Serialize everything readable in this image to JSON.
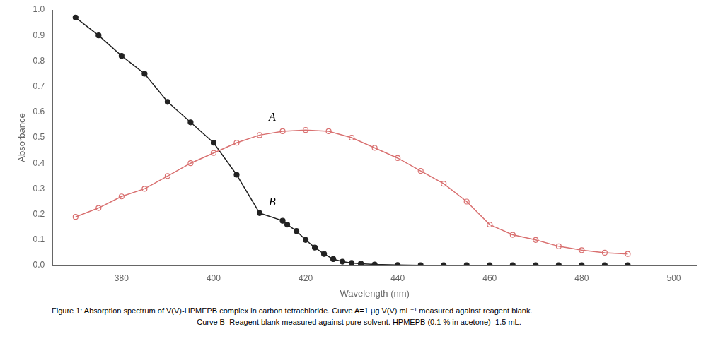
{
  "chart_data": {
    "type": "line",
    "xlabel": "Wavelength (nm)",
    "ylabel": "Absorbance",
    "series": [
      {
        "color": "#d97070",
        "marker": "open_circle",
        "x": [
          370,
          375,
          380,
          385,
          390,
          395,
          400,
          405,
          410,
          415,
          420,
          425,
          430,
          435,
          440,
          445,
          450,
          455,
          460,
          465,
          470,
          475,
          480,
          485,
          490
        ],
        "values": [
          0.19,
          0.225,
          0.27,
          0.3,
          0.35,
          0.4,
          0.44,
          0.48,
          0.51,
          0.525,
          0.53,
          0.525,
          0.5,
          0.46,
          0.42,
          0.37,
          0.32,
          0.25,
          0.16,
          0.12,
          0.1,
          0.075,
          0.06,
          0.05,
          0.045
        ]
      },
      {
        "color": "#222222",
        "marker": "circle",
        "x": [
          370,
          375,
          380,
          385,
          390,
          395,
          400,
          405,
          410,
          415,
          416,
          418,
          420,
          422,
          424,
          426,
          428,
          430,
          432,
          435,
          440,
          445,
          450,
          455,
          460,
          465,
          470,
          475,
          480,
          485,
          490
        ],
        "values": [
          0.97,
          0.9,
          0.82,
          0.75,
          0.64,
          0.56,
          0.48,
          0.355,
          0.205,
          0.175,
          0.16,
          0.135,
          0.1,
          0.07,
          0.045,
          0.025,
          0.015,
          0.01,
          0.007,
          0.004,
          0.002,
          0.001,
          0.001,
          0.001,
          0.001,
          0.001,
          0.001,
          0.001,
          0.001,
          0.001,
          0.001
        ]
      }
    ],
    "xlim": [
      365,
      505
    ],
    "ylim": [
      0.0,
      1.0
    ],
    "xticks": [
      380,
      400,
      420,
      440,
      460,
      480,
      500
    ],
    "yticks": [
      {
        "value": 0.0,
        "label": "0.0"
      },
      {
        "value": 0.1,
        "label": "0.1"
      },
      {
        "value": 0.2,
        "label": "0.2"
      },
      {
        "value": 0.3,
        "label": "0.3"
      },
      {
        "value": 0.4,
        "label": "0.4"
      },
      {
        "value": 0.5,
        "label": "0.5"
      },
      {
        "value": 0.6,
        "label": "0.6"
      },
      {
        "value": 0.7,
        "label": "0.7"
      },
      {
        "value": 0.8,
        "label": "0.8"
      },
      {
        "value": 0.9,
        "label": "0.9"
      },
      {
        "value": 1.0,
        "label": "1.0"
      }
    ],
    "grid": false,
    "annotations": [
      {
        "text": "A",
        "x": 412,
        "y": 0.565
      },
      {
        "text": "B",
        "x": 412,
        "y": 0.235
      }
    ],
    "caption": [
      "Figure 1: Absorption spectrum of V(V)-HPMEPB complex in carbon tetrachloride. Curve A=1 μg V(V) mL⁻¹ measured against reagent blank.",
      "Curve B=Reagent blank measured against pure solvent. HPMEPB (0.1 % in acetone)=1.5 mL."
    ]
  }
}
